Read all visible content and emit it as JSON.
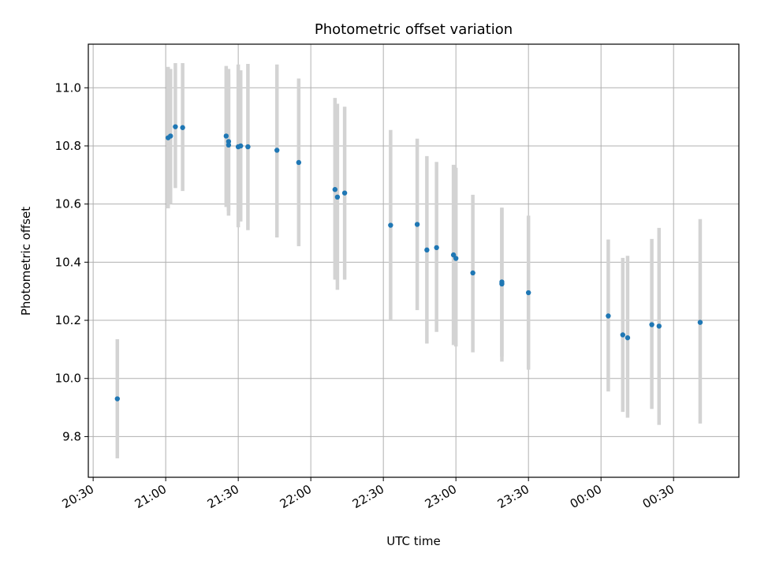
{
  "chart_data": {
    "type": "scatter",
    "title": "Photometric offset variation",
    "xlabel": "UTC time",
    "ylabel": "Photometric offset",
    "grid": true,
    "x_range": [
      "20:28",
      "00:57"
    ],
    "ylim": [
      9.66,
      11.15
    ],
    "x_ticks": [
      "20:30",
      "21:00",
      "21:30",
      "22:00",
      "22:30",
      "23:00",
      "23:30",
      "00:00",
      "00:30"
    ],
    "y_ticks": [
      9.8,
      10.0,
      10.2,
      10.4,
      10.6,
      10.8,
      11.0
    ],
    "colors": {
      "points": "#1f77b4",
      "errorbars": "#d3d3d3",
      "grid": "#b0b0b0"
    },
    "series": [
      {
        "points": [
          {
            "x": "20:40",
            "y": 9.93,
            "ylo": 9.725,
            "yhi": 10.135
          },
          {
            "x": "21:01",
            "y": 10.828,
            "ylo": 10.585,
            "yhi": 11.072
          },
          {
            "x": "21:02",
            "y": 10.834,
            "ylo": 10.6,
            "yhi": 11.065
          },
          {
            "x": "21:04",
            "y": 10.866,
            "ylo": 10.655,
            "yhi": 11.085
          },
          {
            "x": "21:07",
            "y": 10.863,
            "ylo": 10.645,
            "yhi": 11.085
          },
          {
            "x": "21:25",
            "y": 10.834,
            "ylo": 10.59,
            "yhi": 11.075
          },
          {
            "x": "21:26",
            "y": 10.815,
            "ylo": 10.575,
            "yhi": 11.065
          },
          {
            "x": "21:26",
            "y": 10.803,
            "ylo": 10.56,
            "yhi": 11.045
          },
          {
            "x": "21:30",
            "y": 10.797,
            "ylo": 10.52,
            "yhi": 11.08
          },
          {
            "x": "21:31",
            "y": 10.8,
            "ylo": 10.54,
            "yhi": 11.06
          },
          {
            "x": "21:34",
            "y": 10.797,
            "ylo": 10.51,
            "yhi": 11.082
          },
          {
            "x": "21:46",
            "y": 10.785,
            "ylo": 10.485,
            "yhi": 11.08
          },
          {
            "x": "21:55",
            "y": 10.743,
            "ylo": 10.455,
            "yhi": 11.032
          },
          {
            "x": "22:10",
            "y": 10.65,
            "ylo": 10.34,
            "yhi": 10.965
          },
          {
            "x": "22:11",
            "y": 10.624,
            "ylo": 10.305,
            "yhi": 10.945
          },
          {
            "x": "22:14",
            "y": 10.638,
            "ylo": 10.34,
            "yhi": 10.935
          },
          {
            "x": "22:33",
            "y": 10.527,
            "ylo": 10.2,
            "yhi": 10.855
          },
          {
            "x": "22:44",
            "y": 10.53,
            "ylo": 10.235,
            "yhi": 10.825
          },
          {
            "x": "22:48",
            "y": 10.442,
            "ylo": 10.12,
            "yhi": 10.765
          },
          {
            "x": "22:52",
            "y": 10.45,
            "ylo": 10.16,
            "yhi": 10.745
          },
          {
            "x": "22:59",
            "y": 10.425,
            "ylo": 10.115,
            "yhi": 10.735
          },
          {
            "x": "23:00",
            "y": 10.413,
            "ylo": 10.11,
            "yhi": 10.725
          },
          {
            "x": "23:07",
            "y": 10.363,
            "ylo": 10.09,
            "yhi": 10.632
          },
          {
            "x": "23:19",
            "y": 10.325,
            "ylo": 10.058,
            "yhi": 10.588
          },
          {
            "x": "23:19",
            "y": 10.332,
            "ylo": 10.075,
            "yhi": 10.585
          },
          {
            "x": "23:30",
            "y": 10.295,
            "ylo": 10.03,
            "yhi": 10.56
          },
          {
            "x": "00:03",
            "y": 10.215,
            "ylo": 9.955,
            "yhi": 10.478
          },
          {
            "x": "00:09",
            "y": 10.15,
            "ylo": 9.885,
            "yhi": 10.415
          },
          {
            "x": "00:11",
            "y": 10.14,
            "ylo": 9.865,
            "yhi": 10.422
          },
          {
            "x": "00:21",
            "y": 10.185,
            "ylo": 9.895,
            "yhi": 10.48
          },
          {
            "x": "00:24",
            "y": 10.18,
            "ylo": 9.84,
            "yhi": 10.518
          },
          {
            "x": "00:41",
            "y": 10.193,
            "ylo": 9.845,
            "yhi": 10.548
          }
        ]
      }
    ]
  }
}
